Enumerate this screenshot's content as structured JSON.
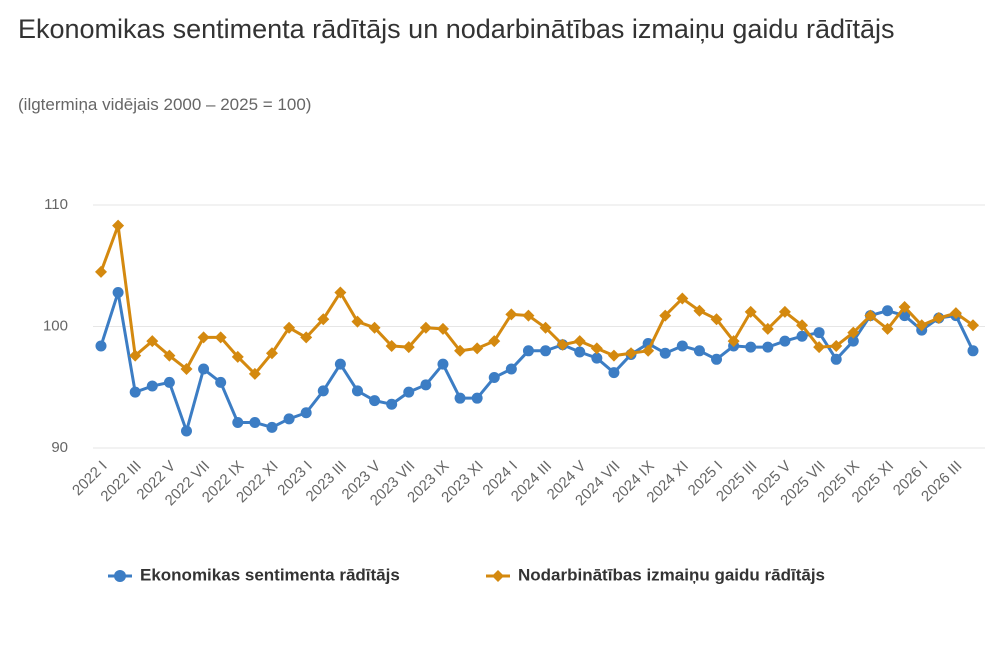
{
  "chart_data": {
    "type": "line",
    "title": "Ekonomikas sentimenta rādītājs un nodarbinātības izmaiņu gaidu rādītājs",
    "subtitle": "(ilgtermiņa vidējais 2000 – 2025 = 100)",
    "categories": [
      "2022 I",
      null,
      "2022 III",
      null,
      "2022 V",
      null,
      "2022 VII",
      null,
      "2022 IX",
      null,
      "2022 XI",
      null,
      "2023 I",
      null,
      "2023 III",
      null,
      "2023 V",
      null,
      "2023 VII",
      null,
      "2023 IX",
      null,
      "2023 XI",
      null,
      "2024 I",
      null,
      "2024 III",
      null,
      "2024 V",
      null,
      "2024 VII",
      null,
      "2024 IX",
      null,
      "2024 XI",
      null,
      "2025 I",
      null,
      "2025 III",
      null,
      "2025 V",
      null,
      "2025 VII",
      null,
      "2025 IX",
      null,
      "2025 XI",
      null,
      "2026 I",
      null,
      "2026 III",
      null
    ],
    "series": [
      {
        "name": "Ekonomikas sentimenta rādītājs",
        "color": "#3c7dc4",
        "values": [
          98.4,
          102.8,
          94.6,
          95.1,
          95.4,
          91.4,
          96.5,
          95.4,
          92.1,
          92.1,
          91.7,
          92.4,
          92.9,
          94.7,
          96.9,
          94.7,
          93.9,
          93.6,
          94.6,
          95.2,
          96.9,
          94.1,
          94.1,
          95.8,
          96.5,
          98.0,
          98.0,
          98.5,
          97.9,
          97.4,
          96.2,
          97.7,
          98.6,
          97.8,
          98.4,
          98.0,
          97.3,
          98.4,
          98.3,
          98.3,
          98.8,
          99.2,
          99.5,
          97.3,
          98.8,
          100.9,
          101.3,
          100.9,
          99.7,
          100.7,
          100.9,
          98.0
        ]
      },
      {
        "name": "Nodarbinātības izmaiņu gaidu rādītājs",
        "color": "#d4890f",
        "values": [
          104.5,
          108.3,
          97.6,
          98.8,
          97.6,
          96.5,
          99.1,
          99.1,
          97.5,
          96.1,
          97.8,
          99.9,
          99.1,
          100.6,
          102.8,
          100.4,
          99.9,
          98.4,
          98.3,
          99.9,
          99.8,
          98.0,
          98.2,
          98.8,
          101.0,
          100.9,
          99.9,
          98.5,
          98.8,
          98.2,
          97.6,
          97.8,
          98.0,
          100.9,
          102.3,
          101.3,
          100.6,
          98.8,
          101.2,
          99.8,
          101.2,
          100.1,
          98.3,
          98.4,
          99.5,
          100.9,
          99.8,
          101.6,
          100.1,
          100.7,
          101.1,
          100.1
        ]
      }
    ],
    "ylim": [
      90,
      110
    ],
    "yticks": [
      90,
      100,
      110
    ],
    "grid": true
  }
}
